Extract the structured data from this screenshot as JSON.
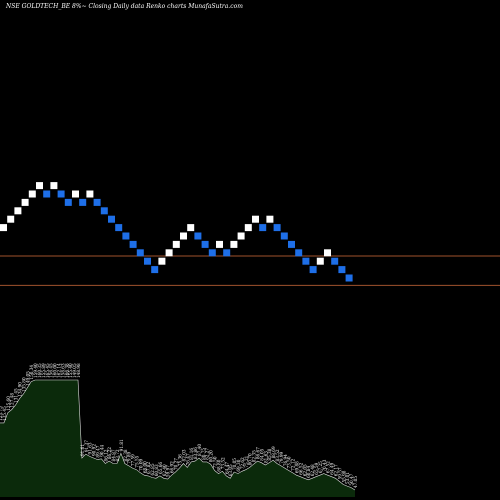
{
  "title": "NSE GOLDTECH_BE 8%~  Closing Daily data  Renko  charts MunafaSutra.com",
  "colors": {
    "background": "#000000",
    "up_brick": "#ffffff",
    "down_brick": "#1e6fe8",
    "reference_lines": "#a0522d",
    "volume_fill": "#0b2a0b",
    "volume_stroke": "#dddddd"
  },
  "chart_data": {
    "type": "renko",
    "brick_pct": 8,
    "reference_levels": [
      142.5,
      128.5
    ],
    "bricks": [
      {
        "dir": "up",
        "level": 156
      },
      {
        "dir": "up",
        "level": 160
      },
      {
        "dir": "up",
        "level": 164
      },
      {
        "dir": "up",
        "level": 168
      },
      {
        "dir": "up",
        "level": 172
      },
      {
        "dir": "up",
        "level": 176
      },
      {
        "dir": "down",
        "level": 172
      },
      {
        "dir": "up",
        "level": 176
      },
      {
        "dir": "down",
        "level": 172
      },
      {
        "dir": "down",
        "level": 168
      },
      {
        "dir": "up",
        "level": 172
      },
      {
        "dir": "down",
        "level": 168
      },
      {
        "dir": "up",
        "level": 172
      },
      {
        "dir": "down",
        "level": 168
      },
      {
        "dir": "down",
        "level": 164
      },
      {
        "dir": "down",
        "level": 160
      },
      {
        "dir": "down",
        "level": 156
      },
      {
        "dir": "down",
        "level": 152
      },
      {
        "dir": "down",
        "level": 148
      },
      {
        "dir": "down",
        "level": 144
      },
      {
        "dir": "down",
        "level": 140
      },
      {
        "dir": "down",
        "level": 136
      },
      {
        "dir": "up",
        "level": 140
      },
      {
        "dir": "up",
        "level": 144
      },
      {
        "dir": "up",
        "level": 148
      },
      {
        "dir": "up",
        "level": 152
      },
      {
        "dir": "up",
        "level": 156
      },
      {
        "dir": "down",
        "level": 152
      },
      {
        "dir": "down",
        "level": 148
      },
      {
        "dir": "down",
        "level": 144
      },
      {
        "dir": "up",
        "level": 148
      },
      {
        "dir": "down",
        "level": 144
      },
      {
        "dir": "up",
        "level": 148
      },
      {
        "dir": "up",
        "level": 152
      },
      {
        "dir": "up",
        "level": 156
      },
      {
        "dir": "up",
        "level": 160
      },
      {
        "dir": "down",
        "level": 156
      },
      {
        "dir": "up",
        "level": 160
      },
      {
        "dir": "down",
        "level": 156
      },
      {
        "dir": "down",
        "level": 152
      },
      {
        "dir": "down",
        "level": 148
      },
      {
        "dir": "down",
        "level": 144
      },
      {
        "dir": "down",
        "level": 140
      },
      {
        "dir": "down",
        "level": 136
      },
      {
        "dir": "up",
        "level": 140
      },
      {
        "dir": "up",
        "level": 144
      },
      {
        "dir": "down",
        "level": 140
      },
      {
        "dir": "down",
        "level": 136
      },
      {
        "dir": "down",
        "level": 132
      }
    ],
    "volume": {
      "values": [
        95,
        95,
        108,
        112,
        118,
        126,
        132,
        140,
        148,
        150,
        150,
        150,
        150,
        150,
        150,
        150,
        150,
        150,
        150,
        150,
        150,
        50,
        55,
        52,
        50,
        48,
        49,
        43,
        46,
        43,
        43,
        56,
        43,
        40,
        37,
        35,
        31,
        28,
        27,
        25,
        24,
        27,
        24,
        23,
        28,
        32,
        37,
        43,
        38,
        45,
        46,
        50,
        45,
        45,
        42,
        34,
        30,
        33,
        27,
        24,
        32,
        30,
        33,
        35,
        38,
        42,
        46,
        44,
        41,
        44,
        47,
        43,
        40,
        37,
        34,
        31,
        28,
        26,
        24,
        22,
        24,
        26,
        28,
        30,
        28,
        26,
        24,
        20,
        16,
        14,
        12,
        9
      ],
      "labels": [
        "123.75",
        "135.45",
        "125.60",
        "127.48",
        "131.45",
        "134.90",
        "135.80",
        "149.05",
        "150.34",
        "159.40",
        "160.35",
        "155.89",
        "165.45",
        "156.45",
        "160.00",
        "162.14",
        "158.63",
        "166.38",
        "155.40",
        "149.05",
        "148.98",
        "91.61",
        "91.37",
        "91.63",
        "90.92",
        "89.47",
        "90.44",
        "86.12",
        "86.22",
        "84.87",
        "83.72",
        "91.81",
        "82.38",
        "79.89",
        "77.59",
        "75.55",
        "70.09",
        "68.00",
        "67.82",
        "62.85",
        "60.83",
        "65.66",
        "62.40",
        "59.97",
        "66.92",
        "70.27",
        "75.36",
        "82.03",
        "76.47",
        "81.16",
        "83.86",
        "87.40",
        "80.75",
        "82.27",
        "80.20",
        "72.50",
        "68.80",
        "73.52",
        "64.47",
        "63.05",
        "70.05",
        "69.30",
        "72.62",
        "75.21",
        "80.70",
        "82.35",
        "86.67",
        "84.05",
        "81.63",
        "85.38",
        "88.69",
        "83.52",
        "79.99",
        "76.94",
        "73.50",
        "72.12",
        "69.88",
        "66.52",
        "62.05",
        "60.84",
        "62.48",
        "65.59",
        "67.25",
        "70.43",
        "67.52",
        "64.49",
        "62.17",
        "59.57",
        "55.98",
        "53.01",
        "50.47",
        "47.05"
      ]
    }
  }
}
